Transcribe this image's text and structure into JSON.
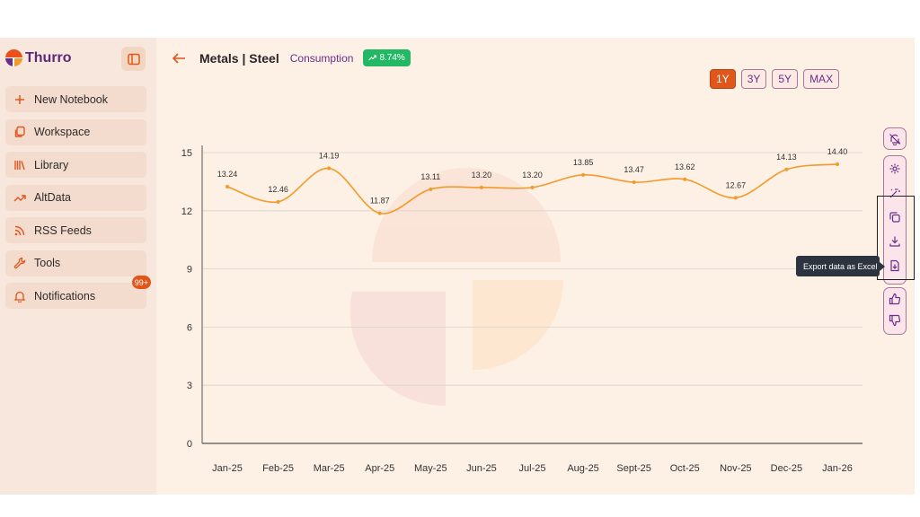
{
  "brand": {
    "name": "Thurro"
  },
  "sidebar": {
    "items": [
      {
        "label": "New Notebook",
        "icon": "plus-icon"
      },
      {
        "label": "Workspace",
        "icon": "copy-icon"
      },
      {
        "label": "Library",
        "icon": "library-icon"
      },
      {
        "label": "AltData",
        "icon": "trend-icon"
      },
      {
        "label": "RSS Feeds",
        "icon": "rss-icon"
      },
      {
        "label": "Tools",
        "icon": "wrench-icon"
      },
      {
        "label": "Notifications",
        "icon": "bell-icon",
        "badge": "99+"
      }
    ]
  },
  "header": {
    "title": "Metals | Steel",
    "subtitle": "Consumption",
    "change": "8.74%"
  },
  "ranges": {
    "items": [
      "1Y",
      "3Y",
      "5Y",
      "MAX"
    ],
    "active": "1Y"
  },
  "toolbar": {
    "tooltip": "Export data as Excel"
  },
  "colors": {
    "accent": "#e0561b",
    "line": "#f39a2a",
    "brand_purple": "#6a2d8a",
    "positive": "#22b864"
  },
  "chart_data": {
    "type": "line",
    "categories": [
      "Jan-25",
      "Feb-25",
      "Mar-25",
      "Apr-25",
      "May-25",
      "Jun-25",
      "Jul-25",
      "Aug-25",
      "Sept-25",
      "Oct-25",
      "Nov-25",
      "Dec-25",
      "Jan-26"
    ],
    "series": [
      {
        "values": [
          13.24,
          12.46,
          14.19,
          11.87,
          13.11,
          13.2,
          13.2,
          13.85,
          13.47,
          13.62,
          12.67,
          14.13,
          14.4
        ]
      }
    ],
    "yticks": [
      0,
      3,
      6,
      9,
      12,
      15
    ],
    "ylim": [
      0,
      15
    ],
    "grid": true
  }
}
